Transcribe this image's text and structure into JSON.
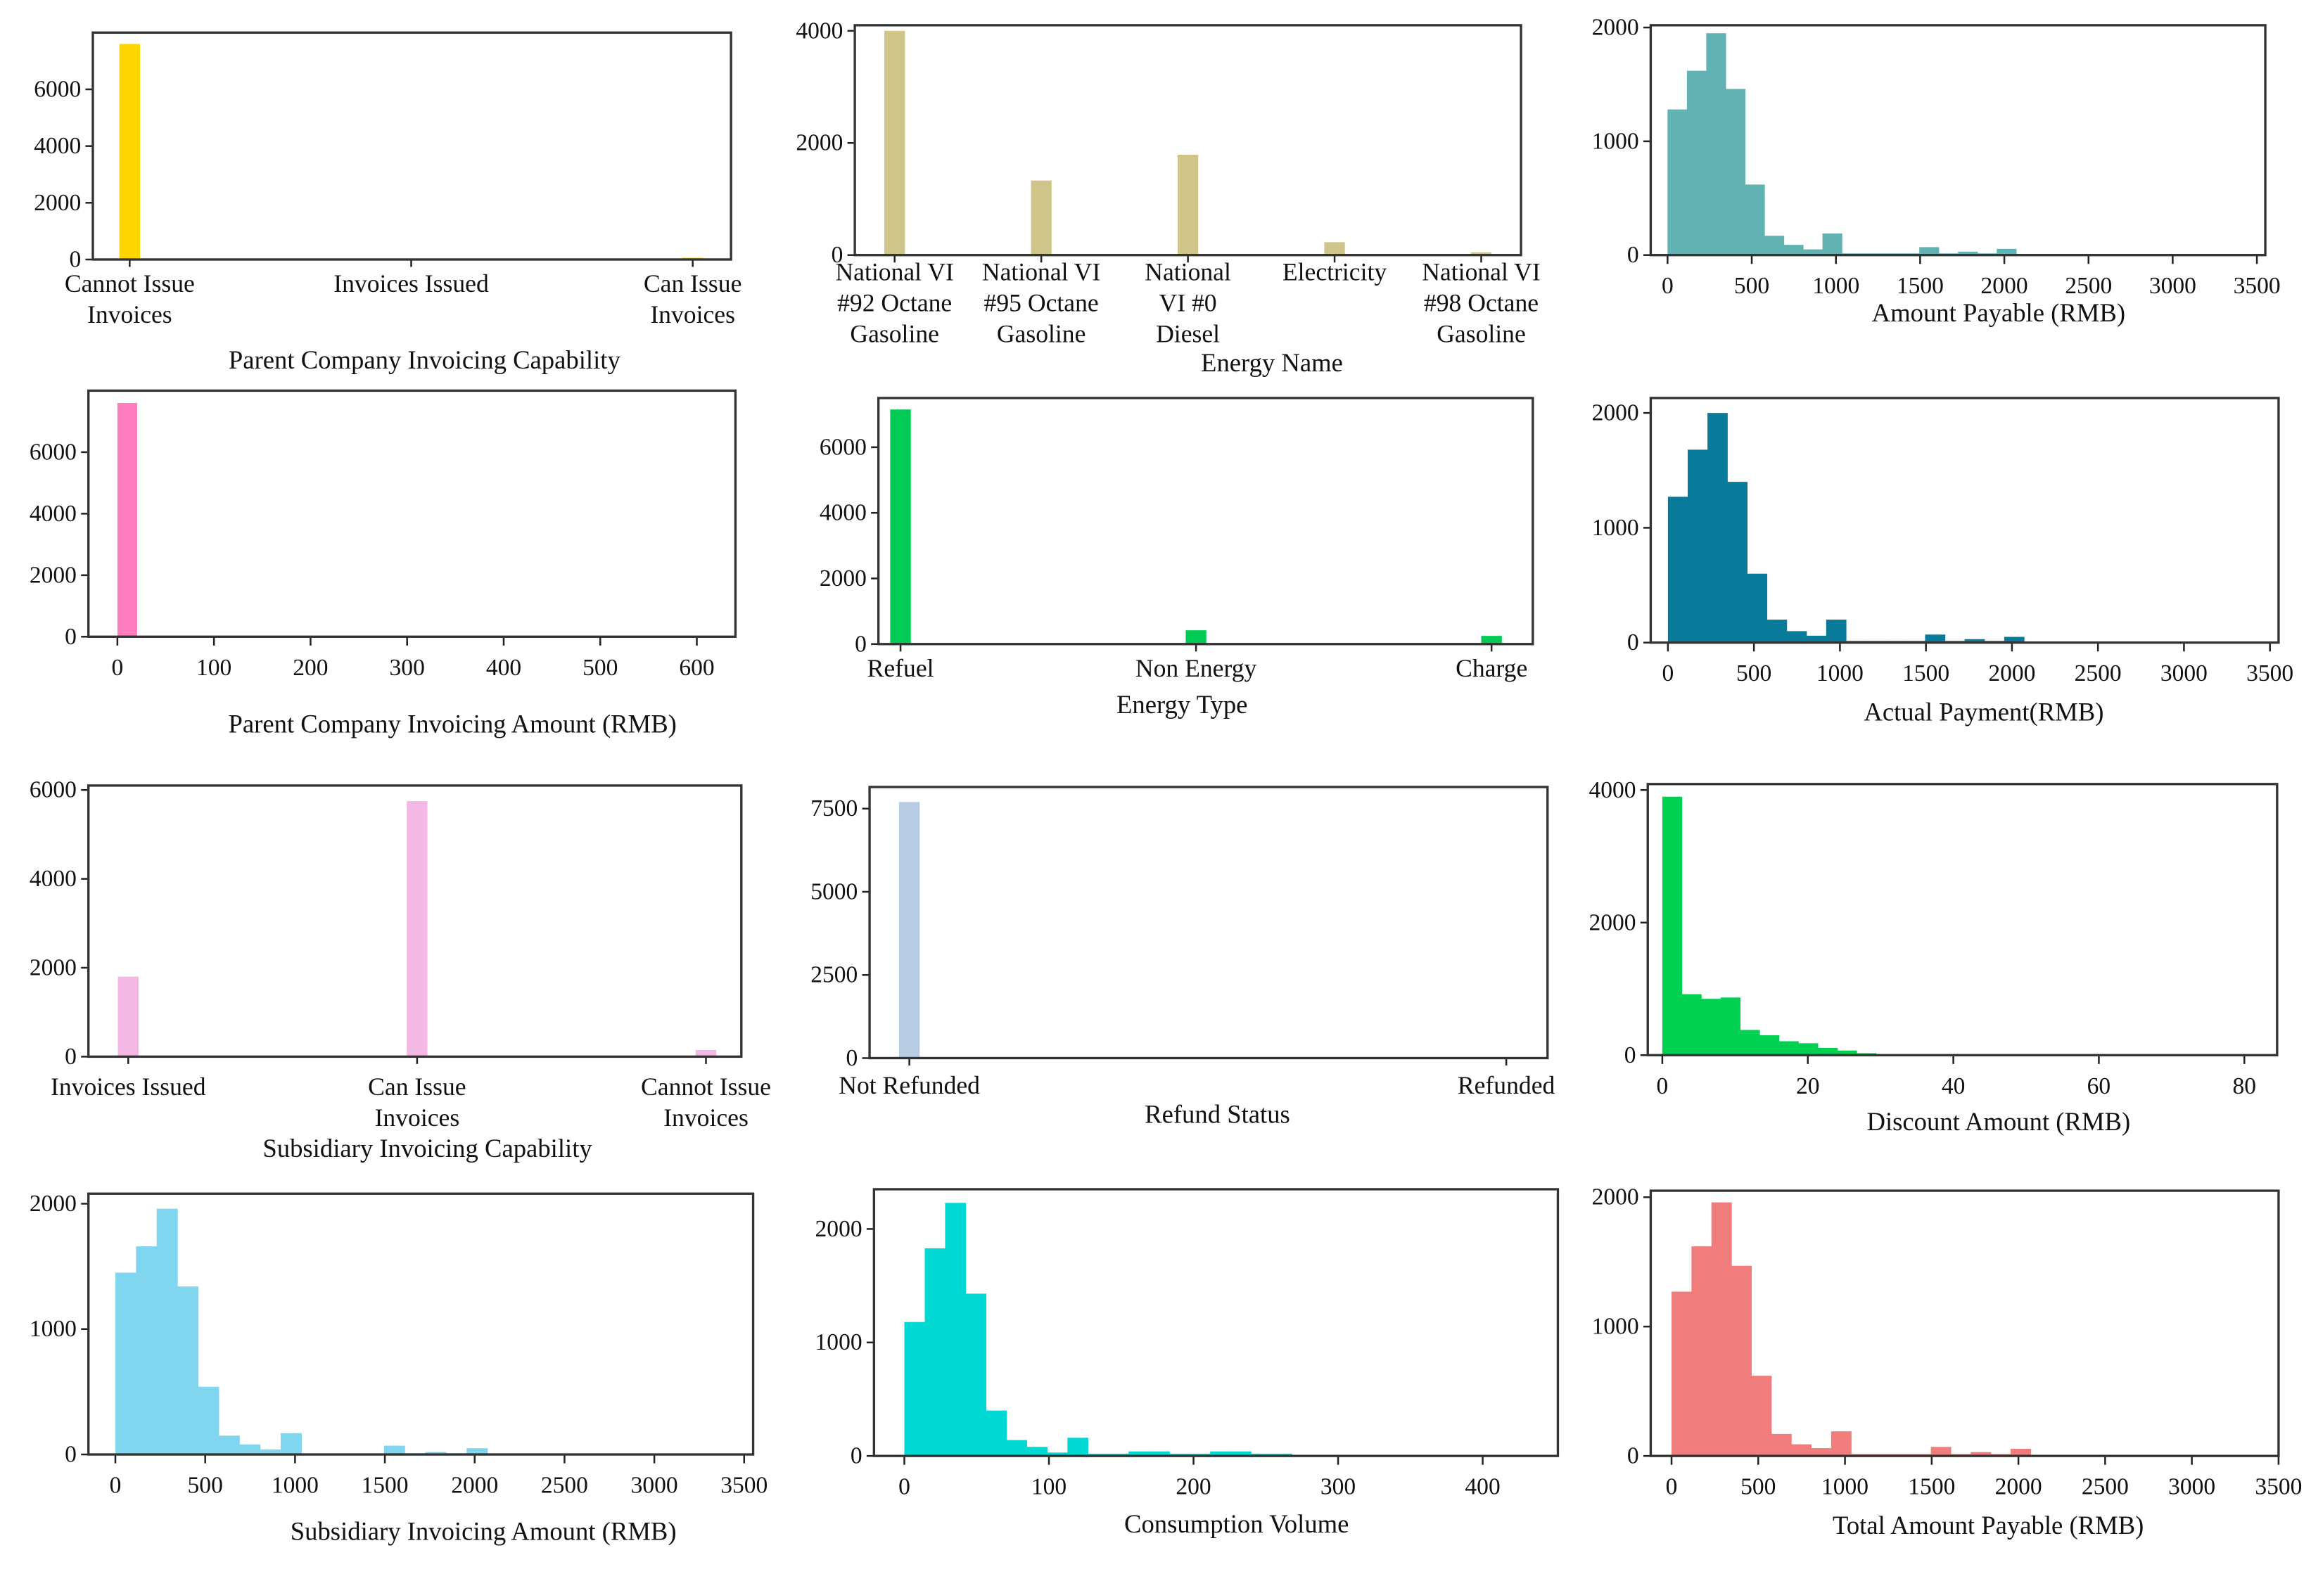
{
  "chart_data": [
    {
      "id": "p1",
      "type": "bar",
      "xlabel": "Parent Company Invoicing Capability",
      "color": "#FFD700",
      "categories": [
        "Cannot Issue\nInvoices",
        "Invoices Issued",
        "Can Issue\nInvoices"
      ],
      "values": [
        7600,
        0,
        60
      ],
      "yticks": [
        0,
        2000,
        4000,
        6000
      ],
      "ylim": [
        0,
        8000
      ]
    },
    {
      "id": "p2",
      "type": "bar",
      "xlabel": "Energy Name",
      "color": "#CFC48A",
      "categories": [
        "National VI\n#92 Octane\nGasoline",
        "National VI\n#95 Octane\nGasoline",
        "National\nVI #0\nDiesel",
        "Electricity",
        "National VI\n#98 Octane\nGasoline"
      ],
      "values": [
        4000,
        1330,
        1790,
        230,
        50
      ],
      "yticks": [
        0,
        2000,
        4000
      ],
      "ylim": [
        0,
        4100
      ]
    },
    {
      "id": "p3",
      "type": "histogram",
      "xlabel": "Amount Payable (RMB)",
      "color": "#62B2B4",
      "bin_start": 0,
      "bin_width": 115,
      "counts": [
        1280,
        1620,
        1950,
        1460,
        620,
        170,
        90,
        50,
        190,
        15,
        15,
        15,
        15,
        70,
        15,
        30,
        15,
        55
      ],
      "xticks": [
        0,
        500,
        1000,
        1500,
        2000,
        2500,
        3000,
        3500
      ],
      "xlim": [
        -100,
        3550
      ],
      "yticks": [
        0,
        1000,
        2000
      ],
      "ylim": [
        0,
        2020
      ]
    },
    {
      "id": "p4",
      "type": "histogram",
      "xlabel": "Parent Company Invoicing Amount (RMB)",
      "color": "#FF7EC0",
      "bin_start": 0,
      "bin_width": 20,
      "counts": [
        7600
      ],
      "xticks": [
        0,
        100,
        200,
        300,
        400,
        500,
        600
      ],
      "xlim": [
        -30,
        640
      ],
      "yticks": [
        0,
        2000,
        4000,
        6000
      ],
      "ylim": [
        0,
        8000
      ]
    },
    {
      "id": "p5",
      "type": "bar",
      "xlabel": "Energy Type",
      "color": "#00CC55",
      "categories": [
        "Refuel",
        "Non Energy",
        "Charge"
      ],
      "values": [
        7150,
        420,
        250
      ],
      "yticks": [
        0,
        2000,
        4000,
        6000
      ],
      "ylim": [
        0,
        7500
      ]
    },
    {
      "id": "p6",
      "type": "histogram",
      "xlabel": "Actual Payment(RMB)",
      "color": "#0A7A9A",
      "bin_start": 0,
      "bin_width": 115,
      "counts": [
        1270,
        1680,
        2000,
        1400,
        600,
        200,
        100,
        60,
        200,
        15,
        15,
        15,
        15,
        70,
        15,
        30,
        15,
        50
      ],
      "xticks": [
        0,
        500,
        1000,
        1500,
        2000,
        2500,
        3000,
        3500
      ],
      "xlim": [
        -100,
        3550
      ],
      "yticks": [
        0,
        1000,
        2000
      ],
      "ylim": [
        0,
        2130
      ]
    },
    {
      "id": "p7",
      "type": "bar",
      "xlabel": "Subsidiary Invoicing Capability",
      "color": "#F4B8E4",
      "categories": [
        "Invoices Issued",
        "Can Issue\nInvoices",
        "Cannot Issue\nInvoices"
      ],
      "values": [
        1800,
        5750,
        150
      ],
      "yticks": [
        0,
        2000,
        4000,
        6000
      ],
      "ylim": [
        0,
        6100
      ]
    },
    {
      "id": "p8",
      "type": "bar",
      "xlabel": "Refund Status",
      "color": "#B8CCE4",
      "categories": [
        "Not Refunded",
        "Refunded"
      ],
      "values": [
        7700,
        30
      ],
      "yticks": [
        0,
        2500,
        5000,
        7500
      ],
      "ylim": [
        0,
        8150
      ]
    },
    {
      "id": "p9",
      "type": "histogram",
      "xlabel": "Discount Amount (RMB)",
      "color": "#00D050",
      "bin_start": 0,
      "bin_width": 2.67,
      "counts": [
        3900,
        920,
        850,
        870,
        380,
        300,
        210,
        180,
        110,
        70,
        30
      ],
      "xticks": [
        0,
        20,
        40,
        60,
        80
      ],
      "xlim": [
        -2,
        84.5
      ],
      "yticks": [
        0,
        2000,
        4000
      ],
      "ylim": [
        0,
        4090
      ]
    },
    {
      "id": "p10",
      "type": "histogram",
      "xlabel": "Subsidiary Invoicing Amount (RMB)",
      "color": "#80D6EE",
      "bin_start": 0,
      "bin_width": 115,
      "counts": [
        1450,
        1660,
        1960,
        1340,
        540,
        150,
        80,
        40,
        170,
        5,
        5,
        5,
        5,
        70,
        10,
        20,
        10,
        50
      ],
      "xticks": [
        0,
        500,
        1000,
        1500,
        2000,
        2500,
        3000,
        3500
      ],
      "xlim": [
        -150,
        3550
      ],
      "yticks": [
        0,
        1000,
        2000
      ],
      "ylim": [
        0,
        2080
      ]
    },
    {
      "id": "p11",
      "type": "histogram",
      "xlabel": "Consumption Volume",
      "color": "#00D8D4",
      "bin_start": 0,
      "bin_width": 14.1,
      "counts": [
        1180,
        1830,
        2230,
        1430,
        400,
        140,
        80,
        30,
        160,
        20,
        20,
        40,
        40,
        20,
        20,
        40,
        40,
        20,
        20
      ],
      "xticks": [
        0,
        100,
        200,
        300,
        400
      ],
      "xlim": [
        -21,
        452
      ],
      "yticks": [
        0,
        1000,
        2000
      ],
      "ylim": [
        0,
        2350
      ]
    },
    {
      "id": "p12",
      "type": "histogram",
      "xlabel": "Total Amount Payable (RMB)",
      "color": "#F07C7C",
      "bin_start": 0,
      "bin_width": 115,
      "counts": [
        1270,
        1620,
        1960,
        1470,
        620,
        170,
        90,
        60,
        190,
        15,
        15,
        15,
        15,
        70,
        15,
        30,
        15,
        55
      ],
      "xticks": [
        0,
        500,
        1000,
        1500,
        2000,
        2500,
        3000,
        3500
      ],
      "xlim": [
        -120,
        3500
      ],
      "yticks": [
        0,
        1000,
        2000
      ],
      "ylim": [
        0,
        2050
      ]
    }
  ]
}
